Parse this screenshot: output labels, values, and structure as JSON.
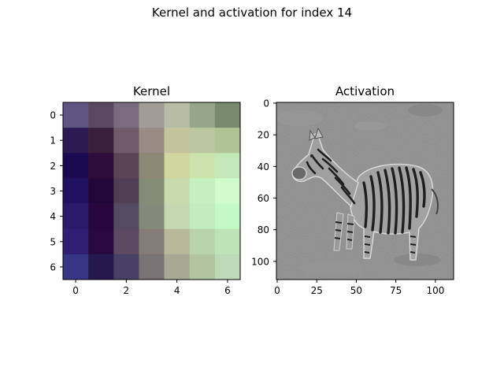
{
  "figure": {
    "suptitle": "Kernel and activation for index 14"
  },
  "chart_data": [
    {
      "type": "heatmap",
      "title": "Kernel",
      "xlabel": "",
      "ylabel": "",
      "x_ticks": [
        "0",
        "2",
        "4",
        "6"
      ],
      "y_ticks": [
        "0",
        "1",
        "2",
        "3",
        "4",
        "5",
        "6"
      ],
      "grid": false,
      "rows": 7,
      "cols": 7,
      "cell_colors": [
        [
          "#5f5583",
          "#5b4761",
          "#7a6c7e",
          "#a29b96",
          "#b9bca4",
          "#97a686",
          "#768b6a"
        ],
        [
          "#2d1a53",
          "#3a1f3a",
          "#6f5b6c",
          "#998c84",
          "#c4c39e",
          "#bac79f",
          "#aec496"
        ],
        [
          "#1b0a51",
          "#2e0c3c",
          "#5a4455",
          "#8d8775",
          "#cfd6a0",
          "#cbe2ad",
          "#c4e7b7"
        ],
        [
          "#201260",
          "#23063a",
          "#4f3e53",
          "#848c78",
          "#c9dbae",
          "#c3efc1",
          "#d0fccb"
        ],
        [
          "#2a1c6b",
          "#27073d",
          "#544a62",
          "#838a7a",
          "#c5d7b1",
          "#c1ecc0",
          "#c4f9c4"
        ],
        [
          "#2f1f72",
          "#28083e",
          "#5c4a63",
          "#847d77",
          "#b7b99a",
          "#b8d3ab",
          "#bee3b7"
        ],
        [
          "#383584",
          "#24184e",
          "#494165",
          "#787476",
          "#a8a994",
          "#b1c3a1",
          "#bcd9b6"
        ]
      ]
    },
    {
      "type": "heatmap",
      "title": "Activation",
      "xlabel": "",
      "ylabel": "",
      "x_ticks": [
        "0",
        "25",
        "50",
        "75",
        "100"
      ],
      "y_ticks": [
        "0",
        "20",
        "40",
        "60",
        "80",
        "100"
      ],
      "xlim": [
        -0.5,
        111.5
      ],
      "ylim": [
        111.5,
        -0.5
      ],
      "grid": false,
      "colormap": "gray",
      "content": "edge-filtered zebra image"
    }
  ]
}
